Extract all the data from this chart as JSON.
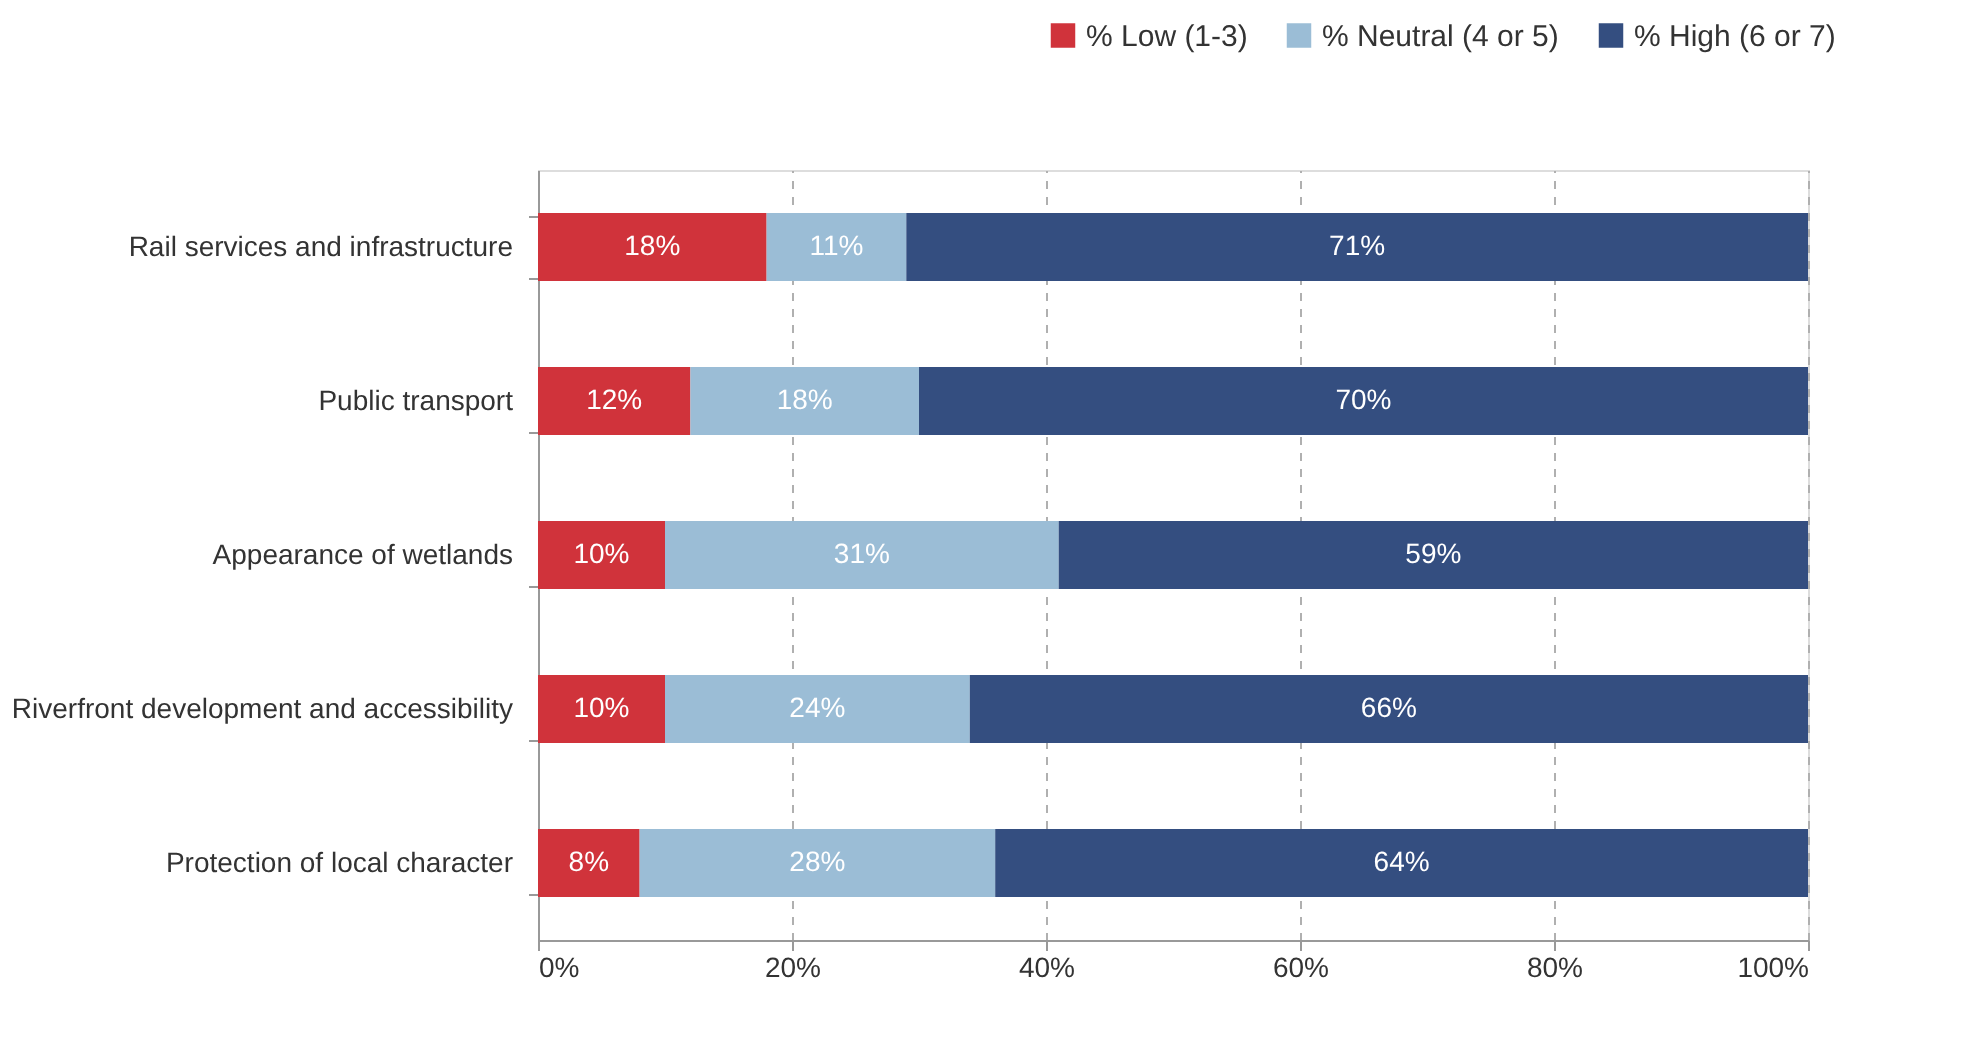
{
  "chart_data": {
    "type": "bar",
    "orientation": "horizontal",
    "stacked": true,
    "categories": [
      "Rail services and infrastructure",
      "Public transport",
      "Appearance of wetlands",
      "Riverfront development and accessibility",
      "Protection of local character"
    ],
    "series": [
      {
        "name": "% Low (1-3)",
        "color": "#d0333b",
        "values": [
          18,
          12,
          10,
          10,
          8
        ],
        "value_labels": [
          "18%",
          "12%",
          "10%",
          "10%",
          "8%"
        ]
      },
      {
        "name": "% Neutral (4 or 5)",
        "color": "#9bbdd6",
        "values": [
          11,
          18,
          31,
          24,
          28
        ],
        "value_labels": [
          "11%",
          "18%",
          "31%",
          "24%",
          "28%"
        ]
      },
      {
        "name": "% High (6 or 7)",
        "color": "#344e80",
        "values": [
          71,
          70,
          59,
          66,
          64
        ],
        "value_labels": [
          "71%",
          "70%",
          "59%",
          "66%",
          "64%"
        ]
      }
    ],
    "xlim": [
      0,
      100
    ],
    "xticks": [
      {
        "value": 0,
        "label": "0%"
      },
      {
        "value": 20,
        "label": "20%"
      },
      {
        "value": 40,
        "label": "40%"
      },
      {
        "value": 60,
        "label": "60%"
      },
      {
        "value": 80,
        "label": "80%"
      },
      {
        "value": 100,
        "label": "100%"
      }
    ],
    "grid": "x",
    "legend": "top right"
  }
}
